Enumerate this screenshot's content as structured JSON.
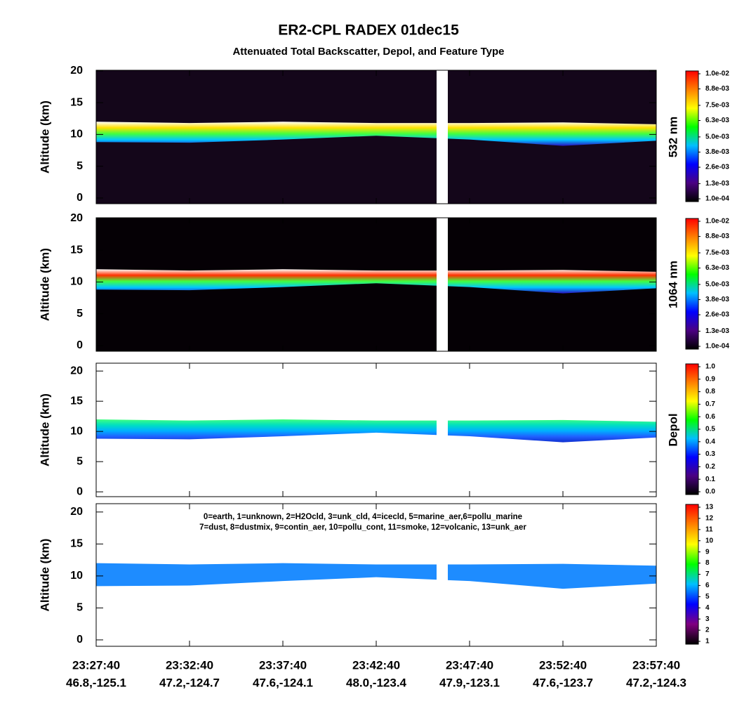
{
  "title": "ER2-CPL RADEX 01dec15",
  "subtitle": "Attenuated Total Backscatter, Depol, and Feature Type",
  "x_labels": {
    "times": [
      "23:27:40",
      "23:32:40",
      "23:37:40",
      "23:42:40",
      "23:47:40",
      "23:52:40",
      "23:57:40"
    ],
    "positions": [
      "46.8,-125.1",
      "47.2,-124.7",
      "47.6,-124.1",
      "48.0,-123.4",
      "47.9,-123.1",
      "47.6,-123.7",
      "47.2,-124.3"
    ]
  },
  "chart_data": [
    {
      "type": "curtain",
      "ylabel": "Altitude (km)",
      "ylim": [
        -0.9,
        20.1
      ],
      "yticks": [
        0,
        5,
        10,
        15,
        20
      ],
      "background": "#14061a",
      "cloud_colors": [
        "#2a10c0",
        "#00c8ff",
        "#40ff40",
        "#ffe000",
        "#ffffff"
      ],
      "cloud_top": [
        12,
        11.8,
        12,
        11.8,
        11.8,
        11.9,
        11.6
      ],
      "cloud_base": [
        8.8,
        8.7,
        9.2,
        9.8,
        9.2,
        8.2,
        9.0
      ],
      "colorbar_label": "532 nm",
      "colorbar_lim": [
        0.0001,
        0.01
      ],
      "colorbar_colors": [
        "#000000",
        "#4b0082",
        "#0000ff",
        "#00bfff",
        "#00ff00",
        "#ffff00",
        "#ff8000",
        "#ff0000"
      ],
      "colorbar_ticks": [
        {
          "value": 0.0001,
          "label": "1.0e-04"
        },
        {
          "value": 0.0013,
          "label": "1.3e-03"
        },
        {
          "value": 0.0026,
          "label": "2.6e-03"
        },
        {
          "value": 0.0038,
          "label": "3.8e-03"
        },
        {
          "value": 0.005,
          "label": "5.0e-03"
        },
        {
          "value": 0.0063,
          "label": "6.3e-03"
        },
        {
          "value": 0.0075,
          "label": "7.5e-03"
        },
        {
          "value": 0.0088,
          "label": "8.8e-03"
        },
        {
          "value": 0.01,
          "label": "1.0e-02"
        }
      ]
    },
    {
      "type": "curtain",
      "ylabel": "Altitude (km)",
      "ylim": [
        -0.9,
        20.1
      ],
      "yticks": [
        0,
        5,
        10,
        15,
        20
      ],
      "background": "#050005",
      "cloud_colors": [
        "#2a10c0",
        "#00c8ff",
        "#40ff40",
        "#ff3000",
        "#ffffff"
      ],
      "cloud_top": [
        12,
        11.8,
        12,
        11.8,
        11.8,
        11.9,
        11.6
      ],
      "cloud_base": [
        8.8,
        8.7,
        9.2,
        9.8,
        9.2,
        8.2,
        9.0
      ],
      "colorbar_label": "1064 nm",
      "colorbar_lim": [
        0.0001,
        0.01
      ],
      "colorbar_colors": [
        "#000000",
        "#4b0082",
        "#0000ff",
        "#00bfff",
        "#00ff00",
        "#ffff00",
        "#ff8000",
        "#ff0000"
      ],
      "colorbar_ticks": [
        {
          "value": 0.0001,
          "label": "1.0e-04"
        },
        {
          "value": 0.0013,
          "label": "1.3e-03"
        },
        {
          "value": 0.0026,
          "label": "2.6e-03"
        },
        {
          "value": 0.0038,
          "label": "3.8e-03"
        },
        {
          "value": 0.005,
          "label": "5.0e-03"
        },
        {
          "value": 0.0063,
          "label": "6.3e-03"
        },
        {
          "value": 0.0075,
          "label": "7.5e-03"
        },
        {
          "value": 0.0088,
          "label": "8.8e-03"
        },
        {
          "value": 0.01,
          "label": "1.0e-02"
        }
      ]
    },
    {
      "type": "curtain",
      "ylabel": "Altitude (km)",
      "ylim": [
        -0.8,
        21.3
      ],
      "yticks": [
        0,
        5,
        10,
        15,
        20
      ],
      "background": "#ffffff",
      "cloud_colors": [
        "#1030d0",
        "#2060ff",
        "#00b0ff",
        "#00e0c0",
        "#40ff80"
      ],
      "cloud_top": [
        12,
        11.8,
        12,
        11.8,
        11.8,
        11.9,
        11.6
      ],
      "cloud_base": [
        8.8,
        8.7,
        9.2,
        9.8,
        9.2,
        8.2,
        9.0
      ],
      "colorbar_label": "Depol",
      "colorbar_lim": [
        0,
        1
      ],
      "colorbar_colors": [
        "#000000",
        "#4b0082",
        "#0000ff",
        "#00bfff",
        "#00ff00",
        "#ffff00",
        "#ff8000",
        "#ff0000"
      ],
      "colorbar_ticks": [
        {
          "value": 0,
          "label": "0.0"
        },
        0.1,
        0.2,
        0.3,
        0.4,
        0.5,
        0.6,
        0.7,
        0.8,
        0.9,
        {
          "value": 1,
          "label": "1.0"
        }
      ]
    },
    {
      "type": "curtain",
      "ylabel": "Altitude (km)",
      "ylim": [
        -1,
        21.3
      ],
      "yticks": [
        0,
        5,
        10,
        15,
        20
      ],
      "background": "#ffffff",
      "cloud_colors": [
        "#1e8cff",
        "#1e8cff"
      ],
      "cloud_top": [
        12,
        11.8,
        12,
        11.8,
        11.8,
        11.9,
        11.6
      ],
      "cloud_base": [
        8.4,
        8.5,
        9.2,
        9.8,
        9.2,
        8.0,
        8.8
      ],
      "annotations": [
        "0=earth, 1=unknown, 2=H2Ocld, 3=unk_cld, 4=icecld, 5=marine_aer,6=pollu_marine",
        "7=dust, 8=dustmix, 9=contin_aer, 10=pollu_cont, 11=smoke, 12=volcanic, 13=unk_aer"
      ],
      "colorbar_lim": [
        1,
        13
      ],
      "colorbar_colors": [
        "#000000",
        "#800080",
        "#0000ff",
        "#00bfff",
        "#00ff00",
        "#ffff00",
        "#ff8000",
        "#ff0000"
      ],
      "colorbar_ticks": [
        1,
        2,
        3,
        4,
        5,
        6,
        7,
        8,
        9,
        10,
        11,
        12,
        13
      ]
    }
  ]
}
